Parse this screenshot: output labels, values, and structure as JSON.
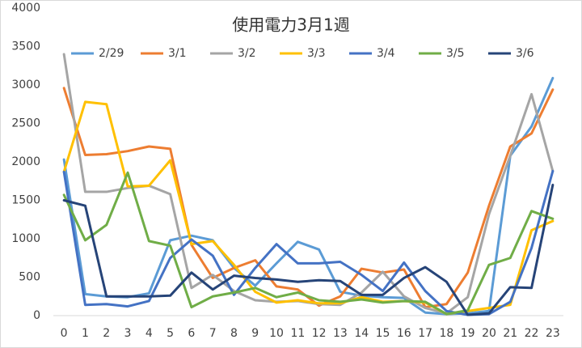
{
  "chart_data": {
    "type": "line",
    "title": "使用電力3月1週",
    "categories": [
      "0",
      "1",
      "2",
      "3",
      "4",
      "5",
      "6",
      "7",
      "8",
      "9",
      "10",
      "11",
      "12",
      "13",
      "14",
      "15",
      "16",
      "17",
      "18",
      "19",
      "20",
      "21",
      "22",
      "23"
    ],
    "ylim": [
      0,
      4000
    ],
    "yticks": [
      0,
      500,
      1000,
      1500,
      2000,
      2500,
      3000,
      3500,
      4000
    ],
    "grid": false,
    "legend": "top",
    "series": [
      {
        "name": "2/29",
        "color": "#5b9bd5",
        "values": [
          2030,
          280,
          250,
          240,
          290,
          980,
          1040,
          980,
          620,
          390,
          680,
          960,
          860,
          310,
          260,
          240,
          230,
          40,
          20,
          30,
          60,
          2080,
          2460,
          3090
        ]
      },
      {
        "name": "3/1",
        "color": "#ed7d31",
        "values": [
          2960,
          2090,
          2100,
          2140,
          2200,
          2170,
          920,
          490,
          620,
          720,
          380,
          340,
          130,
          250,
          610,
          560,
          600,
          110,
          150,
          560,
          1430,
          2200,
          2370,
          2940
        ]
      },
      {
        "name": "3/2",
        "color": "#a5a5a5",
        "values": [
          3400,
          1610,
          1610,
          1660,
          1690,
          1580,
          360,
          530,
          320,
          200,
          180,
          190,
          150,
          140,
          300,
          570,
          250,
          100,
          30,
          240,
          1320,
          2080,
          2880,
          1880
        ]
      },
      {
        "name": "3/3",
        "color": "#ffc000",
        "values": [
          1870,
          2780,
          2750,
          1680,
          1690,
          2020,
          930,
          970,
          660,
          310,
          170,
          200,
          160,
          160,
          240,
          180,
          190,
          170,
          20,
          60,
          100,
          140,
          1110,
          1230
        ]
      },
      {
        "name": "3/4",
        "color": "#4472c4",
        "values": [
          1870,
          140,
          150,
          120,
          190,
          750,
          990,
          780,
          270,
          620,
          930,
          680,
          680,
          700,
          530,
          320,
          690,
          320,
          60,
          10,
          20,
          180,
          880,
          1880
        ]
      },
      {
        "name": "3/5",
        "color": "#70ad47",
        "values": [
          1570,
          980,
          1180,
          1860,
          970,
          910,
          110,
          250,
          300,
          360,
          240,
          300,
          200,
          180,
          210,
          170,
          190,
          180,
          20,
          70,
          660,
          750,
          1360,
          1260
        ]
      },
      {
        "name": "3/6",
        "color": "#264478",
        "values": [
          1500,
          1430,
          250,
          250,
          250,
          260,
          560,
          340,
          520,
          490,
          470,
          440,
          460,
          450,
          270,
          270,
          490,
          630,
          440,
          10,
          30,
          370,
          360,
          1700
        ]
      }
    ]
  }
}
